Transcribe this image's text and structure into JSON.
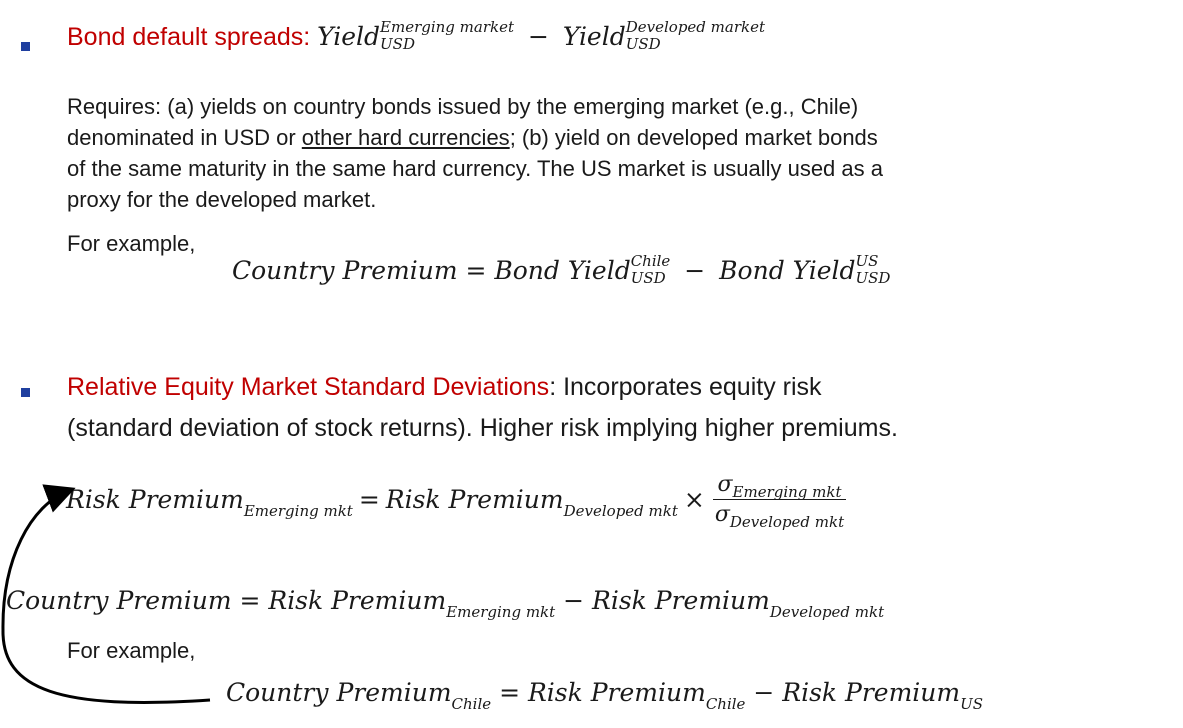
{
  "section1": {
    "heading": "Bond default spreads: ",
    "formula": {
      "yield": "Yield",
      "sup_em": "Emerging market",
      "sup_dev": "Developed market",
      "sub": "USD",
      "minus": "−"
    },
    "para_lines": [
      "Requires: (a) yields on country bonds issued by the emerging market (e.g., Chile)",
      "denominated in USD or ",
      "other hard currencies",
      "; (b) yield on developed market bonds",
      "of the same maturity in the same hard currency. The US market is usually used as a",
      "proxy for the developed market."
    ],
    "example_label": "For example,",
    "example_formula": {
      "lhs": "Country Premium = ",
      "bond_yield": "Bond Yield",
      "sup_chile": "Chile",
      "sup_us": "US",
      "sub": "USD",
      "minus": "−"
    }
  },
  "section2": {
    "heading": "Relative Equity Market Standard Deviations",
    "rest_line1": ": Incorporates equity risk",
    "line2": "(standard deviation of stock returns). Higher risk implying higher premiums.",
    "formula1": {
      "lhs": "Risk Premium",
      "lhs_sub": "Emerging mkt",
      "eq": "=",
      "rhs": "Risk Premium",
      "rhs_sub": "Developed mkt",
      "times": "×",
      "sigma": "σ",
      "num_sub": "Emerging mkt",
      "den_sub": "Developed mkt"
    },
    "formula2": {
      "lhs": "Country Premium = Risk Premium",
      "sub1": "Emerging mkt",
      "minus": " − Risk Premium",
      "sub2": "Developed mkt"
    },
    "example_label": "For example,",
    "formula3": {
      "lhs": "Country Premium",
      "lhs_sub": "Chile",
      "mid": " = Risk Premium",
      "mid_sub": "Chile",
      "minus": " − Risk Premium",
      "end_sub": "US"
    }
  },
  "colors": {
    "heading_red": "#c00000",
    "bullet_blue": "#1f3f9f",
    "text": "#1a1a1a"
  }
}
